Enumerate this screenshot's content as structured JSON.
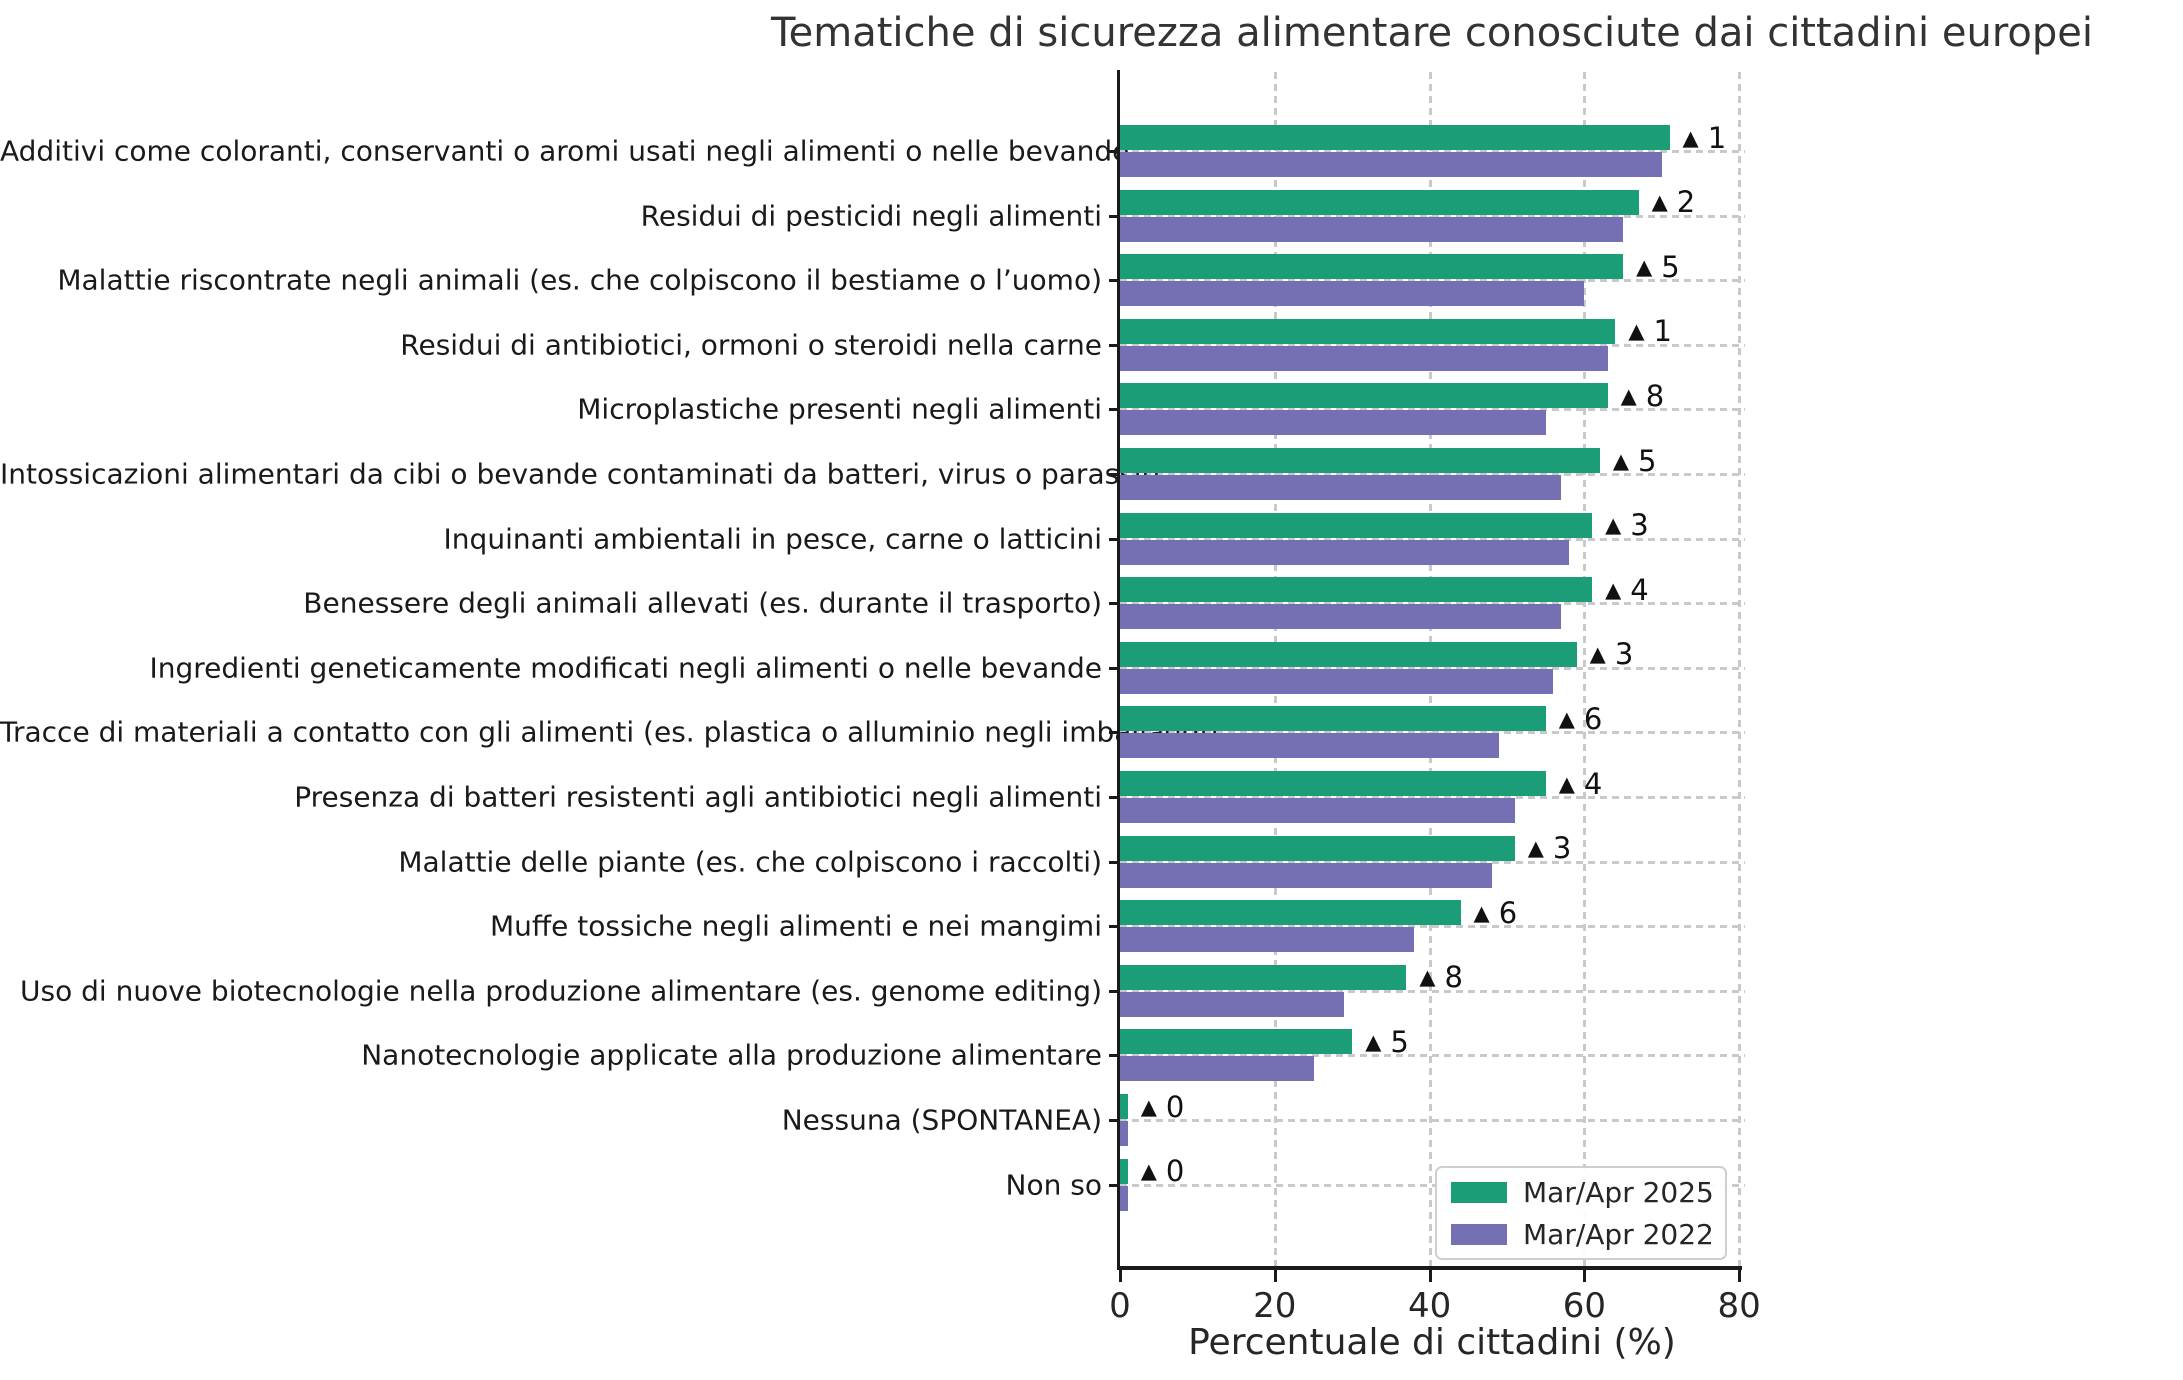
{
  "title": "Tematiche di sicurezza alimentare conosciute dai cittadini europei",
  "x_axis": {
    "label": "Percentuale di cittadini (%)",
    "ticks": [
      0,
      20,
      40,
      60,
      80
    ],
    "max": 80
  },
  "legend": {
    "items": [
      {
        "label": "Mar/Apr 2025",
        "color": "#1b9e77"
      },
      {
        "label": "Mar/Apr 2022",
        "color": "#7570b3"
      }
    ]
  },
  "colors": {
    "series_2025": "#1b9e77",
    "series_2022": "#7570b3",
    "grid": "#c9c9c9",
    "spine": "#1a1a1a",
    "text": "#262626",
    "title": "#333333",
    "delta": "#111111"
  },
  "delta_marker": "▲",
  "chart_data": {
    "type": "bar",
    "orientation": "horizontal",
    "title": "Tematiche di sicurezza alimentare conosciute dai cittadini europei",
    "xlabel": "Percentuale di cittadini (%)",
    "ylabel": "",
    "xlim": [
      0,
      80
    ],
    "xticks": [
      0,
      20,
      40,
      60,
      80
    ],
    "grid": true,
    "legend_position": "lower right",
    "categories": [
      "Additivi come coloranti, conservanti o aromi usati negli alimenti o nelle bevande",
      "Residui di pesticidi negli alimenti",
      "Malattie riscontrate negli animali (es. che colpiscono il bestiame o l’uomo)",
      "Residui di antibiotici, ormoni o steroidi nella carne",
      "Microplastiche presenti negli alimenti",
      "Intossicazioni alimentari da cibi o bevande contaminati da batteri, virus o parassiti",
      "Inquinanti ambientali in pesce, carne o latticini",
      "Benessere degli animali allevati (es. durante il trasporto)",
      "Ingredienti geneticamente modificati negli alimenti o nelle bevande",
      "Tracce di materiali a contatto con gli alimenti (es. plastica o alluminio negli imballaggi)",
      "Presenza di batteri resistenti agli antibiotici negli alimenti",
      "Malattie delle piante (es. che colpiscono i raccolti)",
      "Muffe tossiche negli alimenti e nei mangimi",
      "Uso di nuove biotecnologie nella produzione alimentare (es. genome editing)",
      "Nanotecnologie applicate alla produzione alimentare",
      "Nessuna (SPONTANEA)",
      "Non so"
    ],
    "series": [
      {
        "name": "Mar/Apr 2025",
        "color": "#1b9e77",
        "values": [
          71,
          67,
          65,
          64,
          63,
          62,
          61,
          61,
          59,
          55,
          55,
          51,
          44,
          37,
          30,
          1,
          1
        ]
      },
      {
        "name": "Mar/Apr 2022",
        "color": "#7570b3",
        "values": [
          70,
          65,
          60,
          63,
          55,
          57,
          58,
          57,
          56,
          49,
          51,
          48,
          38,
          29,
          25,
          1,
          1
        ]
      }
    ],
    "delta_annotations": [
      1,
      2,
      5,
      1,
      8,
      5,
      3,
      4,
      3,
      6,
      4,
      3,
      6,
      8,
      5,
      0,
      0
    ]
  }
}
